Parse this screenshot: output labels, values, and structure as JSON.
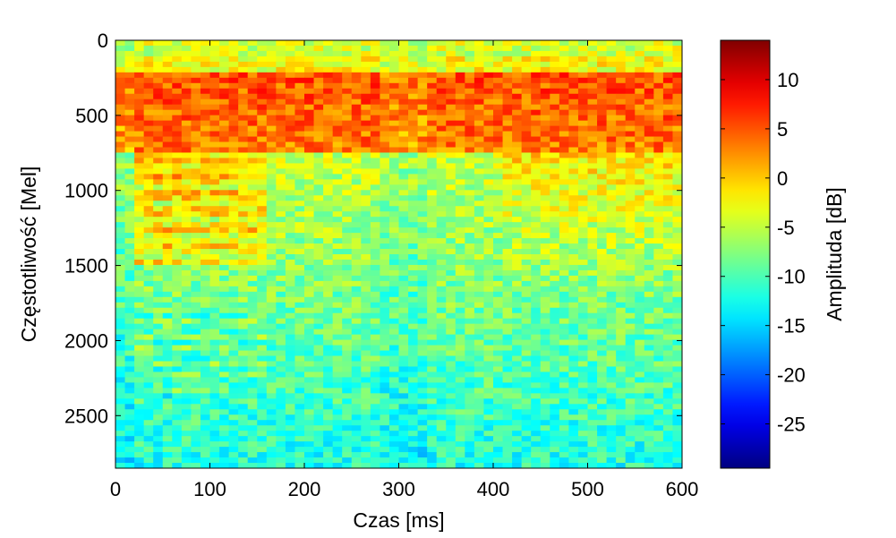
{
  "chart_data": {
    "type": "heatmap",
    "title": "",
    "xlabel": "Czas [ms]",
    "ylabel": "Częstotliwość [Mel]",
    "colorbar_label": "Amplituda [dB]",
    "xlim": [
      0,
      600
    ],
    "ylim": [
      0,
      2850
    ],
    "y_reversed": true,
    "x_ticks": [
      0,
      100,
      200,
      300,
      400,
      500,
      600
    ],
    "x_tick_labels": [
      "0",
      "100",
      "200",
      "300",
      "400",
      "500",
      "600"
    ],
    "y_ticks": [
      0,
      500,
      1000,
      1500,
      2000,
      2500
    ],
    "y_tick_labels": [
      "0",
      "500",
      "1000",
      "1500",
      "2000",
      "2500"
    ],
    "colorbar_range": [
      -29.5,
      14
    ],
    "colorbar_ticks": [
      10,
      5,
      0,
      -5,
      -10,
      -15,
      -20,
      -25
    ],
    "colorbar_tick_labels": [
      "10",
      "5",
      "0",
      "-5",
      "-10",
      "-15",
      "-20",
      "-25"
    ],
    "colormap": "jet",
    "grid": false,
    "time_bins": 60,
    "frequency_bins": 80
  }
}
